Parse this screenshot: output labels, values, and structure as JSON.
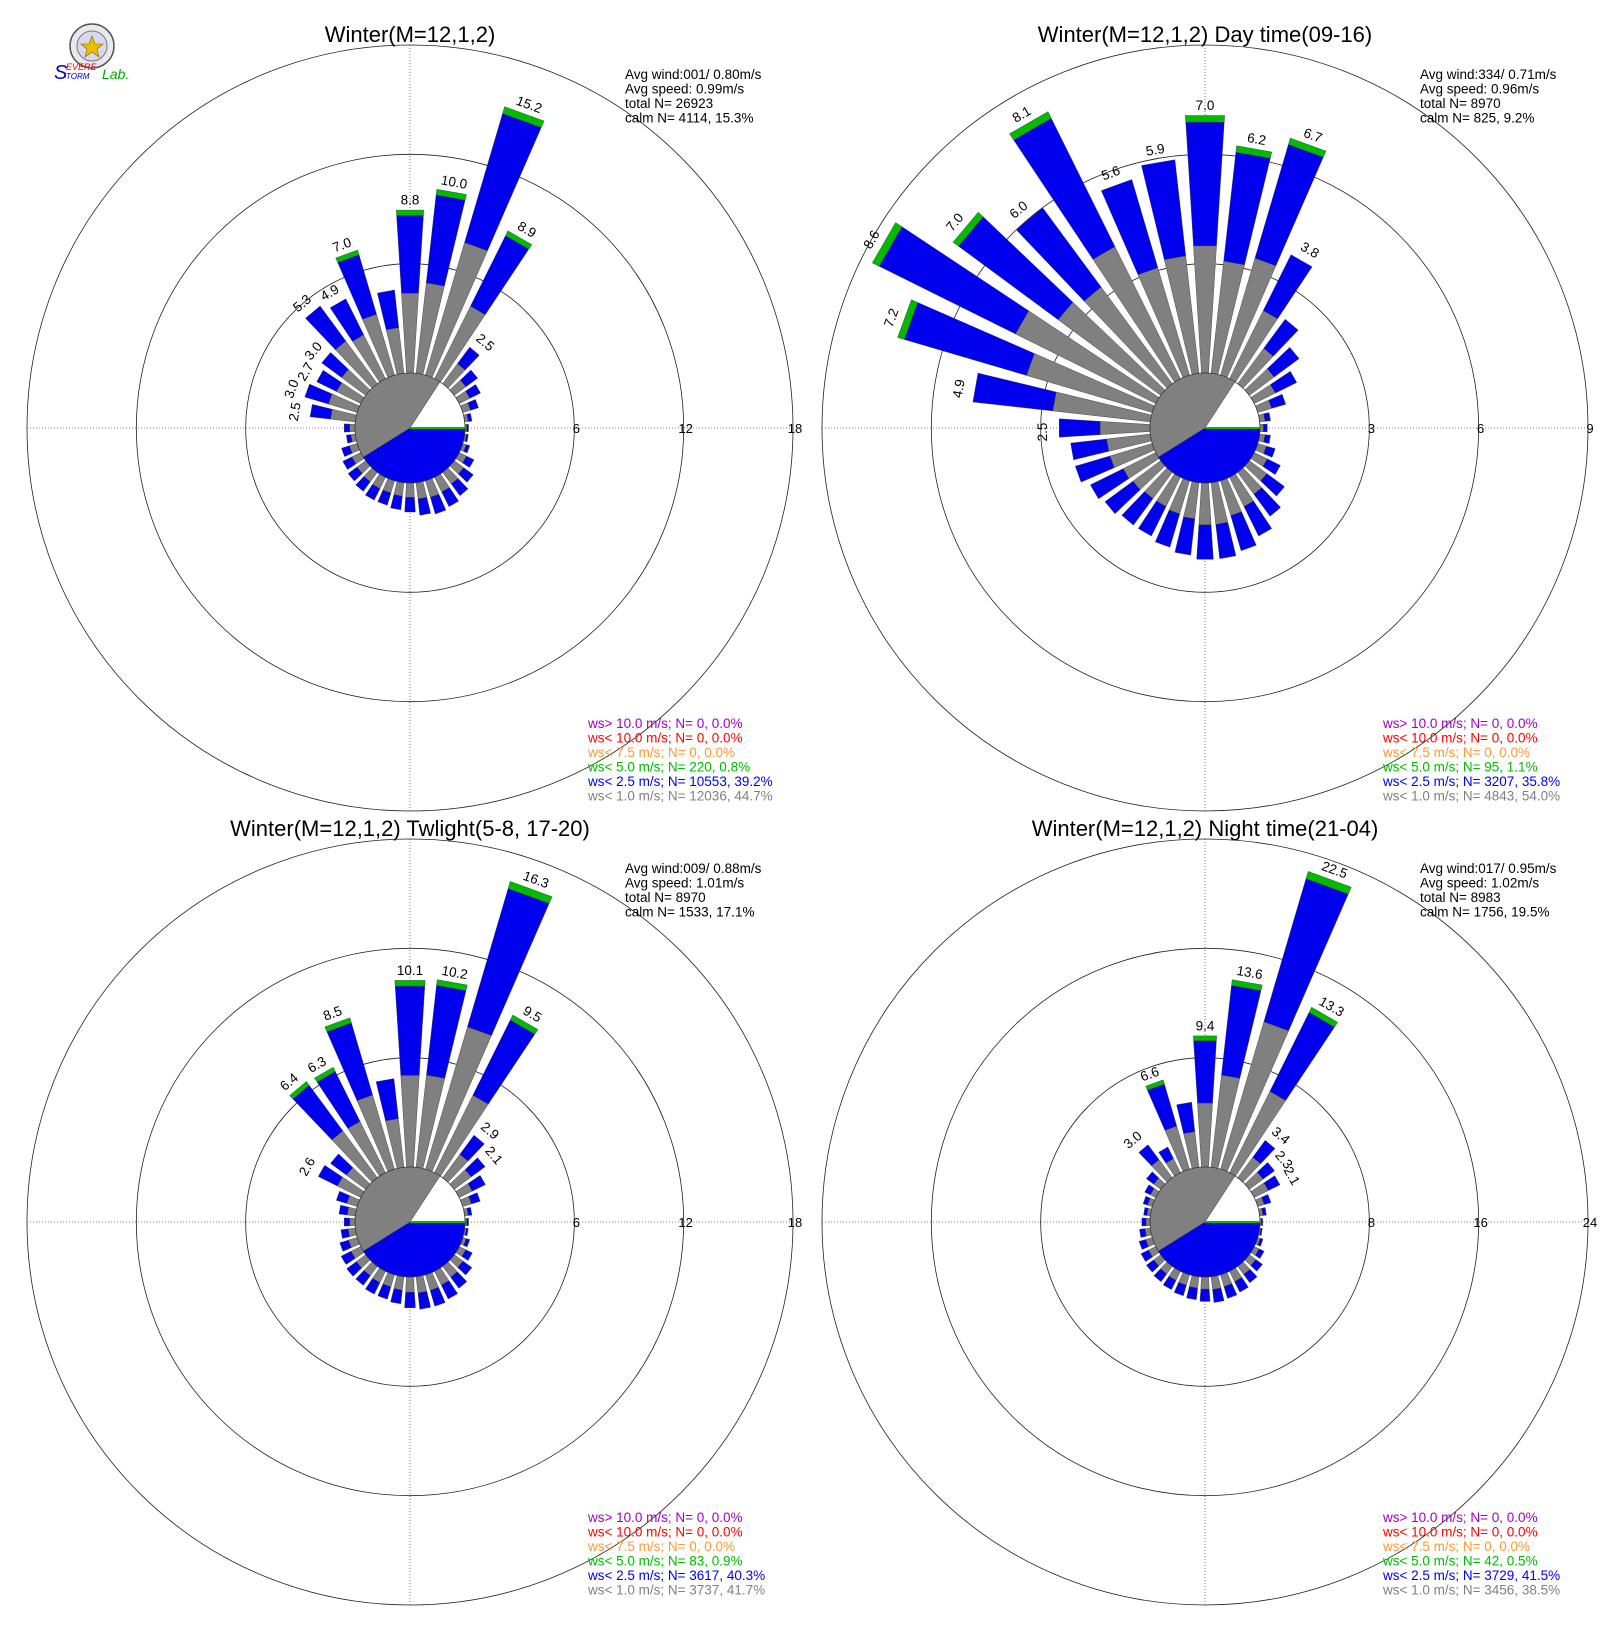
{
  "logo": {
    "text_s": "S",
    "text_severe": "EVERE",
    "text_storm": "TORM",
    "text_lab": "Lab."
  },
  "colors": {
    "gray": "#808080",
    "blue": "#0000ee",
    "green": "#00bb00",
    "orange": "#ff9933",
    "red": "#ff0000",
    "purple": "#a000c8"
  },
  "chart_data": [
    {
      "type": "wind_rose",
      "title": "Winter(M=12,1,2)",
      "stats": [
        "Avg wind:001/ 0.80m/s",
        "Avg speed: 0.99m/s",
        "total N=      26923",
        "calm N=   4114,  15.3%"
      ],
      "ring_ticks": [
        "6",
        "12",
        "18"
      ],
      "rmax": 18,
      "calm_pct": 15.3,
      "directions_deg": [
        0,
        10,
        20,
        30,
        40,
        50,
        60,
        70,
        80,
        90,
        100,
        110,
        120,
        130,
        140,
        150,
        160,
        170,
        180,
        190,
        200,
        210,
        220,
        230,
        240,
        250,
        260,
        270,
        280,
        290,
        300,
        310,
        320,
        330,
        340,
        350
      ],
      "values": [
        8.8,
        10.0,
        15.2,
        8.9,
        2.5,
        1.6,
        1.3,
        0.9,
        0.4,
        0.2,
        0.2,
        0.4,
        0.9,
        1.3,
        1.6,
        1.8,
        1.9,
        1.8,
        1.6,
        1.5,
        1.4,
        1.4,
        1.3,
        1.2,
        1.1,
        0.9,
        0.5,
        0.6,
        2.5,
        3.0,
        2.7,
        3.0,
        5.3,
        4.9,
        7.0,
        4.6
      ],
      "bar_labels": [
        {
          "dir": 0,
          "text": "8.8"
        },
        {
          "dir": 10,
          "text": "10.0"
        },
        {
          "dir": 20,
          "text": "15.2"
        },
        {
          "dir": 30,
          "text": "8.9"
        },
        {
          "dir": 40,
          "text": "2.5"
        },
        {
          "dir": 280,
          "text": "2.5"
        },
        {
          "dir": 290,
          "text": "3.0"
        },
        {
          "dir": 300,
          "text": "2.7"
        },
        {
          "dir": 310,
          "text": "3.0"
        },
        {
          "dir": 320,
          "text": "5.3"
        },
        {
          "dir": 330,
          "text": "4.9"
        },
        {
          "dir": 340,
          "text": "7.0"
        }
      ],
      "legend": [
        {
          "text": "ws> 10.0 m/s; N=      0,  0.0%",
          "color": "#a000c8"
        },
        {
          "text": "ws< 10.0 m/s; N=      0,  0.0%",
          "color": "#ff0000"
        },
        {
          "text": "ws<  7.5 m/s; N=      0,  0.0%",
          "color": "#ff9933"
        },
        {
          "text": "ws<  5.0 m/s; N=    220,  0.8%",
          "color": "#00bb00"
        },
        {
          "text": "ws<  2.5 m/s; N= 10553, 39.2%",
          "color": "#0000ee"
        },
        {
          "text": "ws<  1.0 m/s; N= 12036, 44.7%",
          "color": "#808080"
        }
      ]
    },
    {
      "type": "wind_rose",
      "title": "Winter(M=12,1,2) Day time(09-16)",
      "stats": [
        "Avg wind:334/ 0.71m/s",
        "Avg speed: 0.96m/s",
        "total N=        8970",
        "calm N=    825,   9.2%"
      ],
      "ring_ticks": [
        "3",
        "6",
        "9"
      ],
      "rmax": 9,
      "calm_pct": 9.2,
      "directions_deg": [
        0,
        10,
        20,
        30,
        40,
        50,
        60,
        70,
        80,
        90,
        100,
        110,
        120,
        130,
        140,
        150,
        160,
        170,
        180,
        190,
        200,
        210,
        220,
        230,
        240,
        250,
        260,
        270,
        280,
        290,
        300,
        310,
        320,
        330,
        340,
        350
      ],
      "values": [
        7.0,
        6.2,
        6.7,
        3.8,
        2.2,
        1.7,
        1.3,
        0.8,
        0.3,
        0.2,
        0.3,
        0.5,
        0.8,
        1.2,
        1.5,
        1.8,
        2.0,
        2.1,
        2.1,
        2.0,
        1.9,
        1.8,
        1.8,
        1.9,
        2.0,
        2.2,
        2.2,
        2.5,
        4.9,
        7.2,
        8.6,
        7.0,
        6.0,
        8.1,
        5.6,
        5.9
      ],
      "bar_labels": [
        {
          "dir": 0,
          "text": "7.0"
        },
        {
          "dir": 10,
          "text": "6.2"
        },
        {
          "dir": 20,
          "text": "6.7"
        },
        {
          "dir": 30,
          "text": "3.8"
        },
        {
          "dir": 270,
          "text": "2.5"
        },
        {
          "dir": 280,
          "text": "4.9"
        },
        {
          "dir": 290,
          "text": "7.2"
        },
        {
          "dir": 300,
          "text": "8.6"
        },
        {
          "dir": 310,
          "text": "7.0"
        },
        {
          "dir": 320,
          "text": "6.0"
        },
        {
          "dir": 330,
          "text": "8.1"
        },
        {
          "dir": 340,
          "text": "5.6"
        },
        {
          "dir": 350,
          "text": "5.9"
        }
      ],
      "legend": [
        {
          "text": "ws> 10.0 m/s; N=      0,  0.0%",
          "color": "#a000c8"
        },
        {
          "text": "ws< 10.0 m/s; N=      0,  0.0%",
          "color": "#ff0000"
        },
        {
          "text": "ws<  7.5 m/s; N=      0,  0.0%",
          "color": "#ff9933"
        },
        {
          "text": "ws<  5.0 m/s; N=     95,   1.1%",
          "color": "#00bb00"
        },
        {
          "text": "ws<  2.5 m/s; N=  3207, 35.8%",
          "color": "#0000ee"
        },
        {
          "text": "ws<  1.0 m/s; N=  4843, 54.0%",
          "color": "#808080"
        }
      ]
    },
    {
      "type": "wind_rose",
      "title": "Winter(M=12,1,2) Twlight(5-8, 17-20)",
      "stats": [
        "Avg wind:009/ 0.88m/s",
        "Avg speed: 1.01m/s",
        "total N=        8970",
        "calm N=   1533,  17.1%"
      ],
      "ring_ticks": [
        "6",
        "12",
        "18"
      ],
      "rmax": 18,
      "calm_pct": 17.1,
      "directions_deg": [
        0,
        10,
        20,
        30,
        40,
        50,
        60,
        70,
        80,
        90,
        100,
        110,
        120,
        130,
        140,
        150,
        160,
        170,
        180,
        190,
        200,
        210,
        220,
        230,
        240,
        250,
        260,
        270,
        280,
        290,
        300,
        310,
        320,
        330,
        340,
        350
      ],
      "values": [
        10.1,
        10.2,
        16.3,
        9.5,
        2.9,
        2.1,
        1.6,
        1.0,
        0.4,
        0.2,
        0.2,
        0.4,
        0.8,
        1.2,
        1.5,
        1.7,
        1.8,
        1.8,
        1.7,
        1.5,
        1.4,
        1.4,
        1.3,
        1.3,
        1.2,
        1.0,
        0.8,
        0.6,
        0.9,
        1.2,
        2.6,
        2.4,
        6.4,
        6.3,
        8.5,
        4.9
      ],
      "bar_labels": [
        {
          "dir": 0,
          "text": "10.1"
        },
        {
          "dir": 10,
          "text": "10.2"
        },
        {
          "dir": 20,
          "text": "16.3"
        },
        {
          "dir": 30,
          "text": "9.5"
        },
        {
          "dir": 40,
          "text": "2.9"
        },
        {
          "dir": 50,
          "text": "2.1"
        },
        {
          "dir": 300,
          "text": "2.6"
        },
        {
          "dir": 320,
          "text": "6.4"
        },
        {
          "dir": 330,
          "text": "6.3"
        },
        {
          "dir": 340,
          "text": "8.5"
        }
      ],
      "legend": [
        {
          "text": "ws> 10.0 m/s; N=      0,  0.0%",
          "color": "#a000c8"
        },
        {
          "text": "ws< 10.0 m/s; N=      0,  0.0%",
          "color": "#ff0000"
        },
        {
          "text": "ws<  7.5 m/s; N=      0,  0.0%",
          "color": "#ff9933"
        },
        {
          "text": "ws<  5.0 m/s; N=     83,  0.9%",
          "color": "#00bb00"
        },
        {
          "text": "ws<  2.5 m/s; N=  3617, 40.3%",
          "color": "#0000ee"
        },
        {
          "text": "ws<  1.0 m/s; N=  3737, 41.7%",
          "color": "#808080"
        }
      ]
    },
    {
      "type": "wind_rose",
      "title": "Winter(M=12,1,2) Night time(21-04)",
      "stats": [
        "Avg wind:017/ 0.95m/s",
        "Avg speed: 1.02m/s",
        "total N=        8983",
        "calm N=   1756,  19.5%"
      ],
      "ring_ticks": [
        "8",
        "16",
        "24"
      ],
      "rmax": 24,
      "calm_pct": 19.5,
      "directions_deg": [
        0,
        10,
        20,
        30,
        40,
        50,
        60,
        70,
        80,
        90,
        100,
        110,
        120,
        130,
        140,
        150,
        160,
        170,
        180,
        190,
        200,
        210,
        220,
        230,
        240,
        250,
        260,
        270,
        280,
        290,
        300,
        310,
        320,
        330,
        340,
        350
      ],
      "values": [
        9.4,
        13.6,
        22.5,
        13.3,
        3.4,
        2.3,
        2.1,
        1.0,
        0.5,
        0.2,
        0.2,
        0.4,
        0.8,
        1.2,
        1.5,
        1.7,
        1.8,
        1.9,
        1.8,
        1.7,
        1.6,
        1.5,
        1.4,
        1.3,
        1.2,
        1.0,
        0.8,
        0.6,
        0.5,
        0.7,
        0.9,
        1.3,
        3.0,
        2.1,
        6.6,
        4.8
      ],
      "bar_labels": [
        {
          "dir": 0,
          "text": "9.4"
        },
        {
          "dir": 10,
          "text": "13.6"
        },
        {
          "dir": 20,
          "text": "22.5"
        },
        {
          "dir": 30,
          "text": "13.3"
        },
        {
          "dir": 40,
          "text": "3.4"
        },
        {
          "dir": 50,
          "text": "2.3"
        },
        {
          "dir": 60,
          "text": "2.1"
        },
        {
          "dir": 320,
          "text": "3.0"
        },
        {
          "dir": 340,
          "text": "6.6"
        }
      ],
      "legend": [
        {
          "text": "ws> 10.0 m/s; N=      0,  0.0%",
          "color": "#a000c8"
        },
        {
          "text": "ws< 10.0 m/s; N=      0,  0.0%",
          "color": "#ff0000"
        },
        {
          "text": "ws<  7.5 m/s; N=      0,  0.0%",
          "color": "#ff9933"
        },
        {
          "text": "ws<  5.0 m/s; N=     42,  0.5%",
          "color": "#00bb00"
        },
        {
          "text": "ws<  2.5 m/s; N=  3729, 41.5%",
          "color": "#0000ee"
        },
        {
          "text": "ws<  1.0 m/s; N=  3456, 38.5%",
          "color": "#808080"
        }
      ]
    }
  ]
}
